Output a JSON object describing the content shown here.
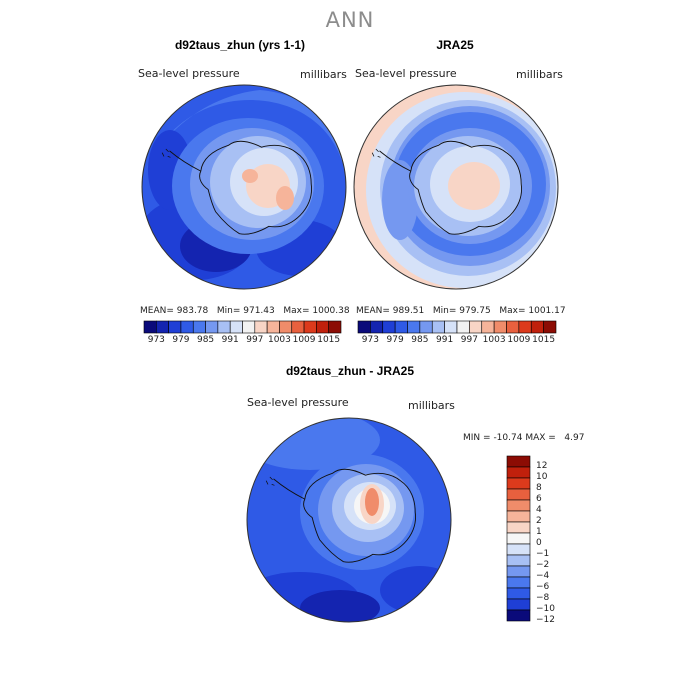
{
  "title": "ANN",
  "chart_data": [
    {
      "type": "heatmap",
      "title": "d92taus_zhun (yrs 1-1)",
      "variable": "Sea-level pressure",
      "units": "millibars",
      "stats": {
        "mean_label": "MEAN=",
        "mean": "983.78",
        "min_label": "Min=",
        "min": "971.43",
        "max_label": "Max=",
        "max": "1000.38"
      }
    },
    {
      "type": "heatmap",
      "title": "JRA25",
      "variable": "Sea-level pressure",
      "units": "millibars",
      "stats": {
        "mean_label": "MEAN=",
        "mean": "989.51",
        "min_label": "Min=",
        "min": "979.75",
        "max_label": "Max=",
        "max": "1001.17"
      }
    },
    {
      "type": "heatmap",
      "title": "d92taus_zhun - JRA25",
      "variable": "Sea-level pressure",
      "units": "millibars",
      "stats": {
        "min_label": "MIN =",
        "min": "-10.74",
        "max_label": "MAX =",
        "max": "4.97"
      }
    }
  ],
  "colorbar_top": {
    "tick_labels": [
      "973",
      "979",
      "985",
      "991",
      "997",
      "1003",
      "1009",
      "1015"
    ],
    "colors": [
      "#0a0a7a",
      "#1424b0",
      "#1f3fd6",
      "#2f5ae6",
      "#4a78ee",
      "#7598f0",
      "#a8c0f4",
      "#d6e2f8",
      "#f2f2f2",
      "#f8d5c6",
      "#f6b49a",
      "#f08c6a",
      "#e8603e",
      "#dc3a1c",
      "#c0200c",
      "#8c0c04"
    ]
  },
  "colorbar_diff": {
    "tick_labels": [
      "12",
      "10",
      "8",
      "6",
      "4",
      "2",
      "1",
      "0",
      "−1",
      "−2",
      "−4",
      "−6",
      "−8",
      "−10",
      "−12"
    ],
    "colors": [
      "#8c0c04",
      "#c0200c",
      "#dc3a1c",
      "#e8603e",
      "#f08c6a",
      "#f6b49a",
      "#f8d5c6",
      "#f6f6f6",
      "#d6e2f8",
      "#a8c0f4",
      "#7598f0",
      "#4a78ee",
      "#2f5ae6",
      "#1f3fd6",
      "#0a0a7a"
    ]
  }
}
